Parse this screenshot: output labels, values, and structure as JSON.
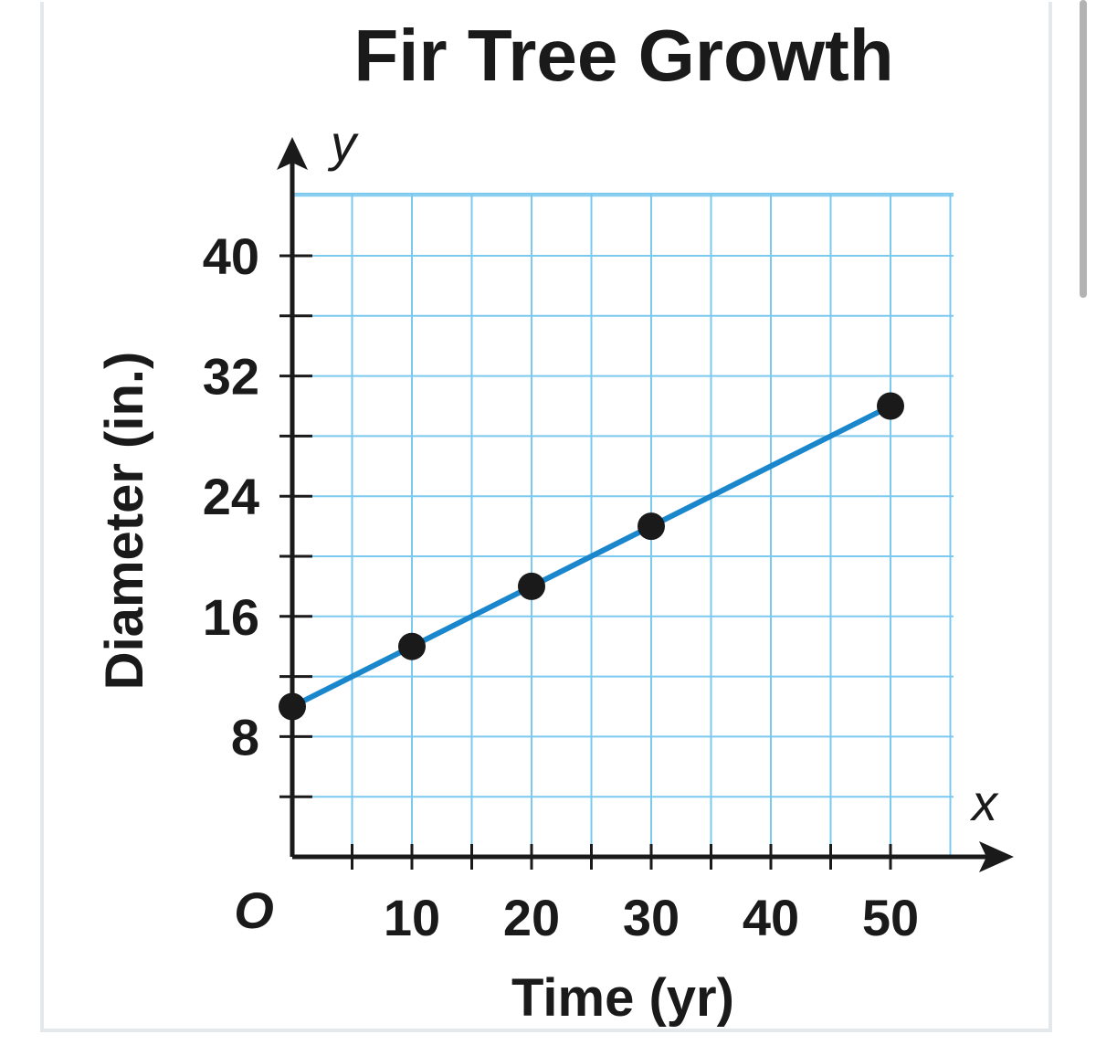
{
  "chart_data": {
    "type": "line",
    "title": "Fir Tree Growth",
    "xlabel": "Time (yr)",
    "ylabel": "Diameter (in.)",
    "x_axis_var": "x",
    "y_axis_var": "y",
    "origin_label": "O",
    "xlim": [
      0,
      55
    ],
    "ylim": [
      0,
      40
    ],
    "x_grid_step": 5,
    "y_grid_step": 4,
    "x_ticks": [
      {
        "value": 10,
        "label": "10"
      },
      {
        "value": 20,
        "label": "20"
      },
      {
        "value": 30,
        "label": "30"
      },
      {
        "value": 40,
        "label": "40"
      },
      {
        "value": 50,
        "label": "50"
      }
    ],
    "y_ticks": [
      {
        "value": 8,
        "label": "8"
      },
      {
        "value": 16,
        "label": "16"
      },
      {
        "value": 24,
        "label": "24"
      },
      {
        "value": 32,
        "label": "32"
      },
      {
        "value": 40,
        "label": "40"
      }
    ],
    "grid": true,
    "series": [
      {
        "points": [
          {
            "x": 0,
            "y": 10
          },
          {
            "x": 10,
            "y": 14
          },
          {
            "x": 20,
            "y": 18
          },
          {
            "x": 30,
            "y": 22
          },
          {
            "x": 50,
            "y": 30
          }
        ],
        "line_from": {
          "x": 0,
          "y": 10
        },
        "line_to": {
          "x": 50,
          "y": 30
        }
      }
    ],
    "colors": {
      "grid": "#7cc9ef",
      "line": "#1a86cc",
      "point": "#1a1a1a",
      "axis": "#1a1a1a"
    }
  }
}
